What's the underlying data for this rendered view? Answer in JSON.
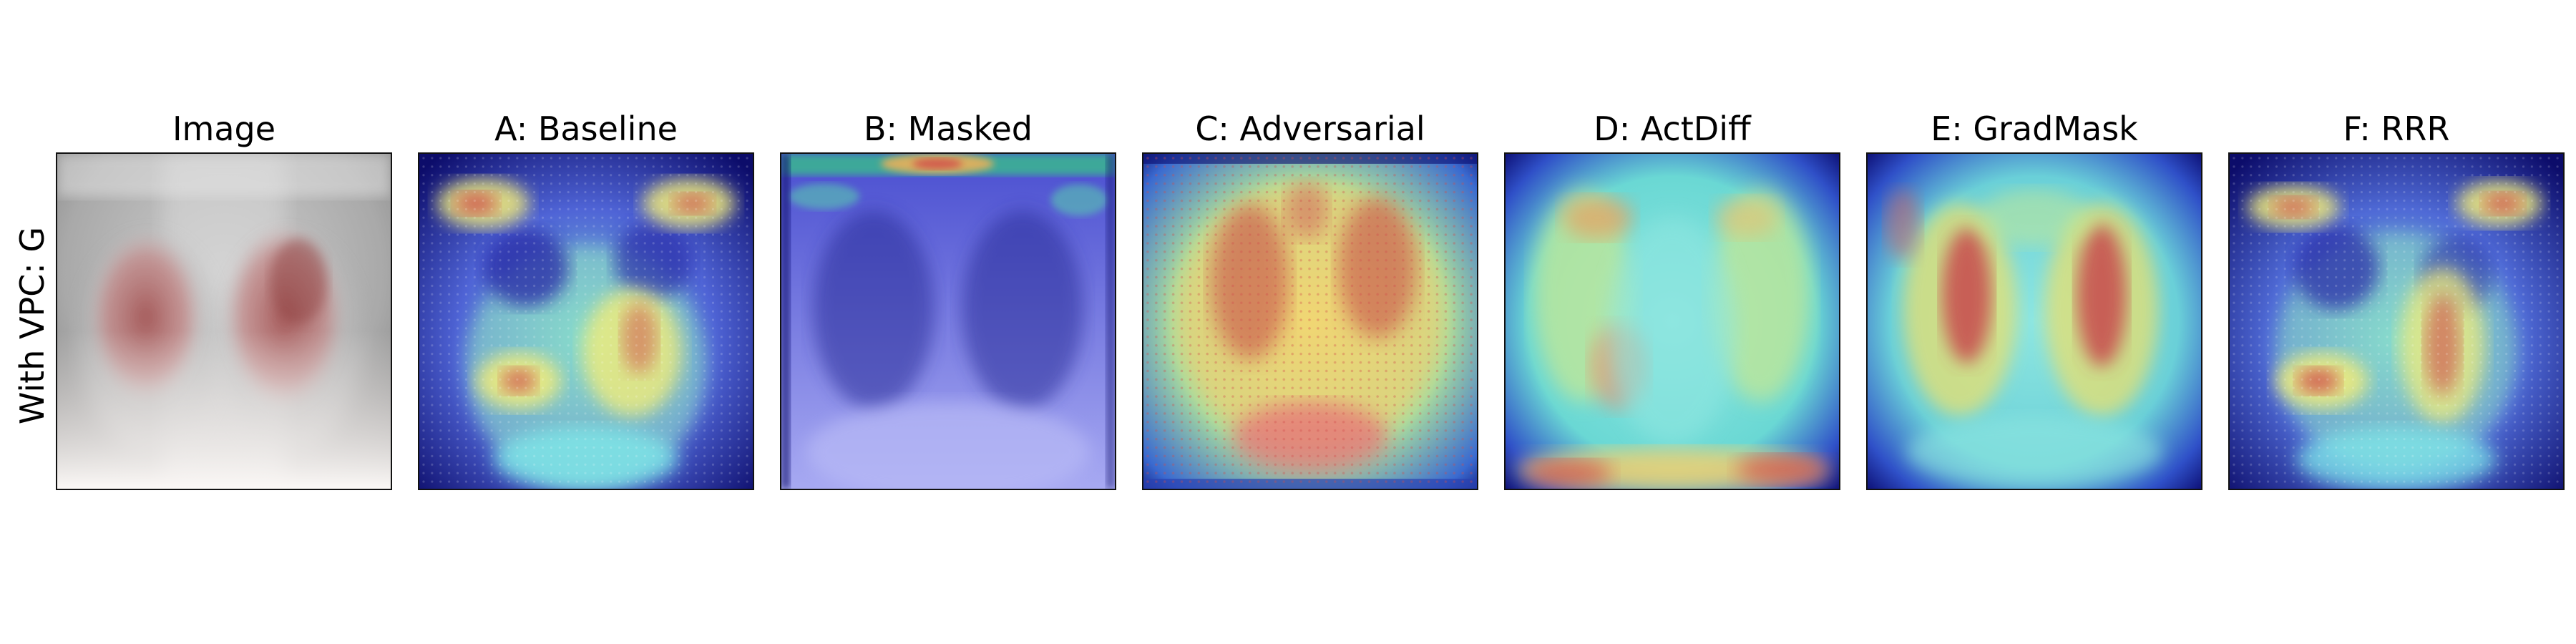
{
  "figure": {
    "row_label": "With VPC: G",
    "panels": [
      {
        "key": "image",
        "title": "Image",
        "kind": "xray"
      },
      {
        "key": "a",
        "title": "A: Baseline",
        "kind": "heatmap"
      },
      {
        "key": "b",
        "title": "B: Masked",
        "kind": "heatmap"
      },
      {
        "key": "c",
        "title": "C: Adversarial",
        "kind": "heatmap"
      },
      {
        "key": "d",
        "title": "D: ActDiff",
        "kind": "heatmap"
      },
      {
        "key": "e",
        "title": "E: GradMask",
        "kind": "heatmap"
      },
      {
        "key": "f",
        "title": "F: RRR",
        "kind": "heatmap"
      }
    ]
  },
  "colors": {
    "jet_dark": "#0a0a6e",
    "jet_blue": "#4a50d8",
    "jet_cyan": "#6fe0e0",
    "jet_yellow": "#f2ec7a",
    "jet_red": "#c83a4a",
    "xray_gray": "#8f8f8f",
    "xray_light": "#f4f0ee",
    "xray_red": "#c05a5a"
  }
}
